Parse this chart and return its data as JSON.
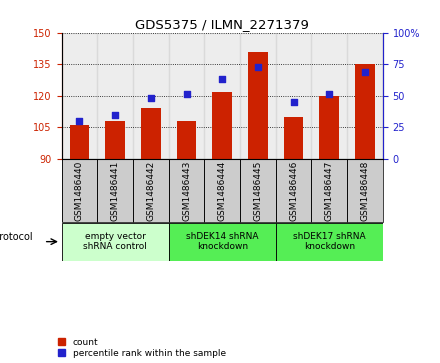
{
  "title": "GDS5375 / ILMN_2271379",
  "samples": [
    "GSM1486440",
    "GSM1486441",
    "GSM1486442",
    "GSM1486443",
    "GSM1486444",
    "GSM1486445",
    "GSM1486446",
    "GSM1486447",
    "GSM1486448"
  ],
  "count_values": [
    106,
    108,
    114,
    108,
    122,
    141,
    110,
    120,
    135
  ],
  "percentile_values": [
    30,
    35,
    48,
    51,
    63,
    73,
    45,
    51,
    69
  ],
  "ylim_left": [
    90,
    150
  ],
  "ylim_right": [
    0,
    100
  ],
  "yticks_left": [
    90,
    105,
    120,
    135,
    150
  ],
  "yticks_right": [
    0,
    25,
    50,
    75,
    100
  ],
  "bar_color": "#cc2200",
  "dot_color": "#2222cc",
  "protocols": [
    {
      "label": "empty vector\nshRNA control",
      "start": 0,
      "end": 3,
      "color": "#ccffcc"
    },
    {
      "label": "shDEK14 shRNA\nknockdown",
      "start": 3,
      "end": 6,
      "color": "#55ee55"
    },
    {
      "label": "shDEK17 shRNA\nknockdown",
      "start": 6,
      "end": 9,
      "color": "#55ee55"
    }
  ],
  "protocol_label": "protocol",
  "legend_count_label": "count",
  "legend_pct_label": "percentile rank within the sample",
  "bar_width": 0.55,
  "dot_size": 22,
  "tick_label_fontsize": 6.5,
  "title_fontsize": 9.5
}
